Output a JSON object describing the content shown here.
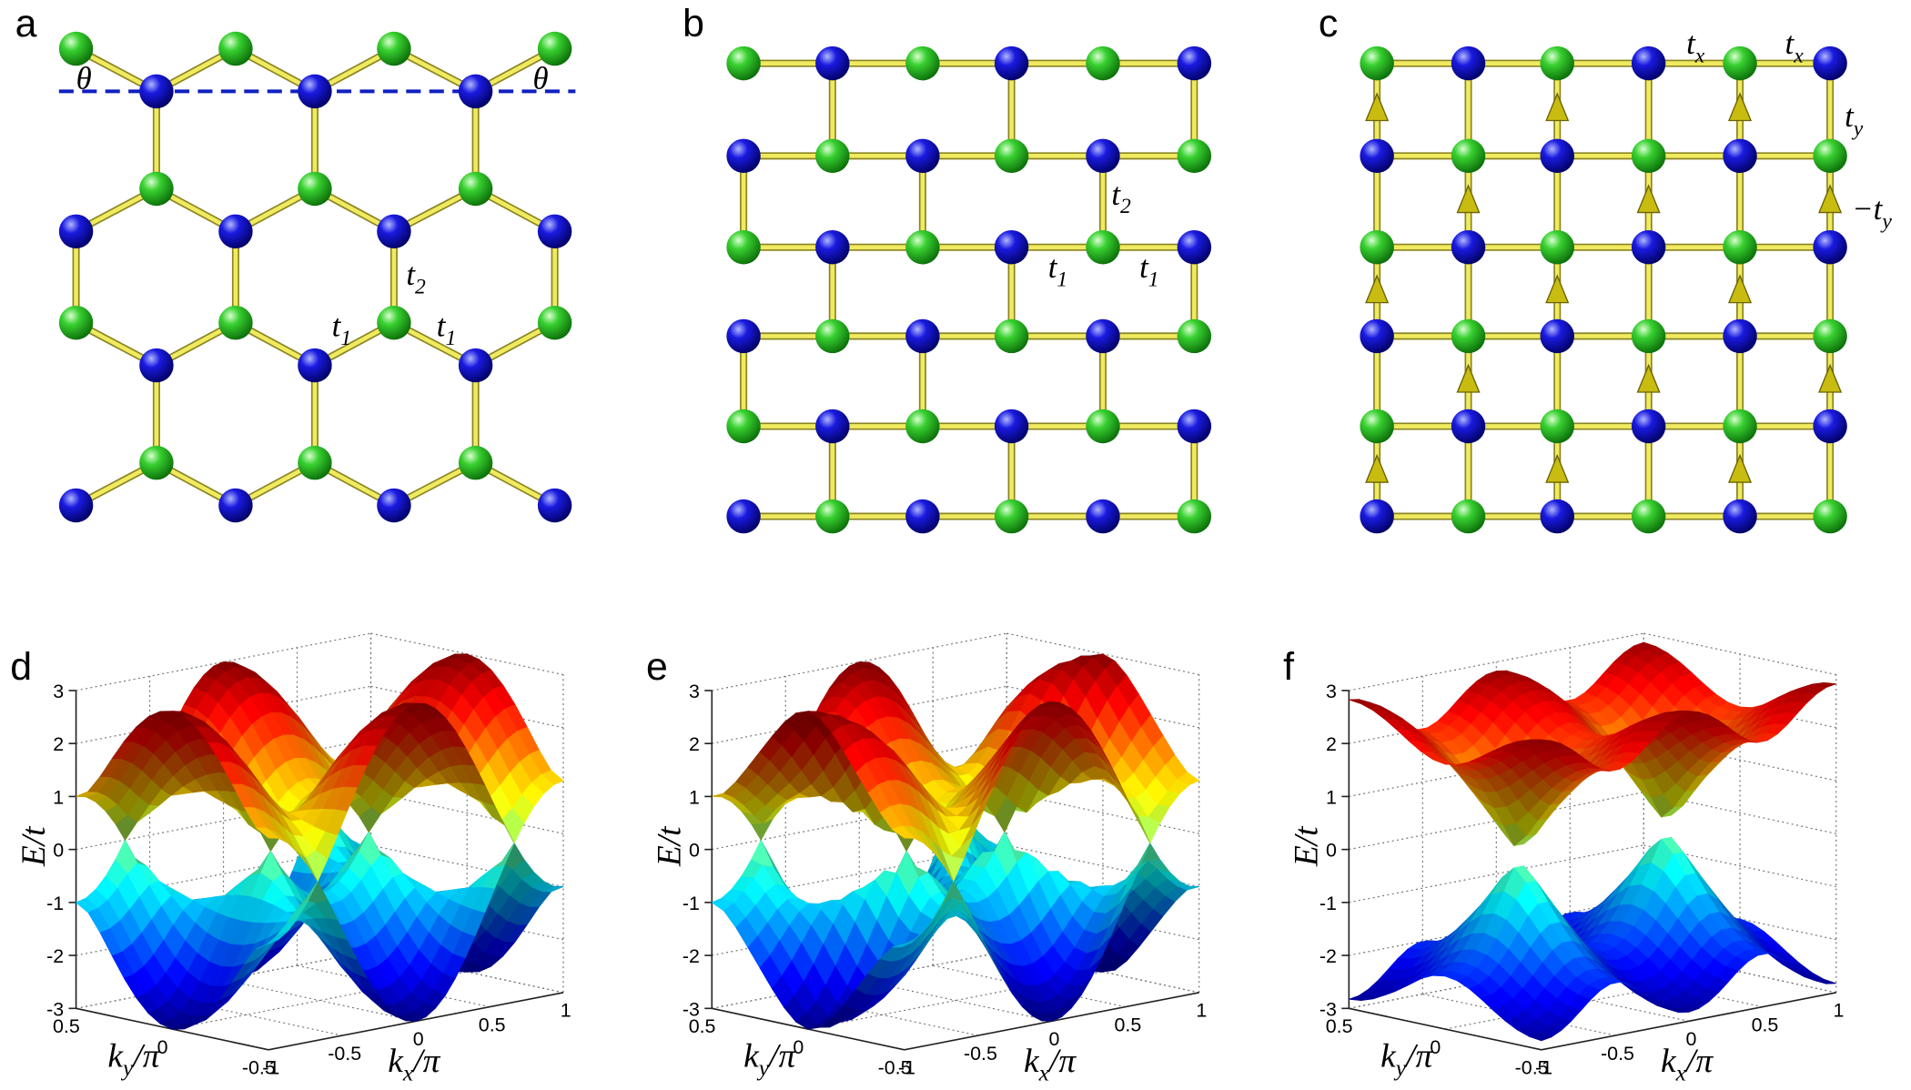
{
  "panels": [
    {
      "letter": "a",
      "labels": [
        {
          "main": "θ"
        },
        {
          "main": "θ"
        },
        {
          "main": "t",
          "sub": "2"
        },
        {
          "main": "t",
          "sub": "1"
        },
        {
          "main": "t",
          "sub": "1"
        }
      ]
    },
    {
      "letter": "b",
      "labels": [
        {
          "main": "t",
          "sub": "2"
        },
        {
          "main": "t",
          "sub": "1"
        },
        {
          "main": "t",
          "sub": "1"
        }
      ]
    },
    {
      "letter": "c",
      "labels": [
        {
          "main": "t",
          "sub": "x"
        },
        {
          "main": "t",
          "sub": "x"
        },
        {
          "main": "t",
          "sub": "y"
        },
        {
          "main": "−t",
          "sub": "y"
        }
      ]
    }
  ],
  "plots": [
    {
      "letter": "d",
      "zlabel": "E/t",
      "ylabel": {
        "main": "k",
        "sub": "y",
        "rest": "/π"
      },
      "xlabel": {
        "main": "k",
        "sub": "x",
        "rest": "/π"
      },
      "zlim": [
        -3,
        3
      ],
      "zticks": [
        3,
        2,
        1,
        0,
        -1,
        -2,
        -3
      ],
      "ylim": [
        -0.5,
        0.5
      ],
      "yticks": [
        0.5,
        0,
        -0.5
      ],
      "xlim": [
        -1,
        1
      ],
      "xticks": [
        -1,
        -0.5,
        0,
        0.5,
        1
      ]
    },
    {
      "letter": "e",
      "zlabel": "E/t",
      "ylabel": {
        "main": "k",
        "sub": "y",
        "rest": "/π"
      },
      "xlabel": {
        "main": "k",
        "sub": "x",
        "rest": "/π"
      },
      "zlim": [
        -3,
        3
      ],
      "zticks": [
        3,
        2,
        1,
        0,
        -1,
        -2,
        -3
      ],
      "ylim": [
        -0.5,
        0.5
      ],
      "yticks": [
        0.5,
        0,
        -0.5
      ],
      "xlim": [
        -1,
        1
      ],
      "xticks": [
        -1,
        -0.5,
        0,
        0.5,
        1
      ]
    },
    {
      "letter": "f",
      "zlabel": "E/t",
      "ylabel": {
        "main": "k",
        "sub": "y",
        "rest": "/π"
      },
      "xlabel": {
        "main": "k",
        "sub": "x",
        "rest": "/π"
      },
      "zlim": [
        -3,
        3
      ],
      "zticks": [
        3,
        2,
        1,
        0,
        -1,
        -2,
        -3
      ],
      "ylim": [
        -0.5,
        0.5
      ],
      "yticks": [
        0.5,
        0,
        -0.5
      ],
      "xlim": [
        -1,
        1
      ],
      "xticks": [
        -1,
        -0.5,
        0,
        0.5,
        1
      ]
    }
  ]
}
